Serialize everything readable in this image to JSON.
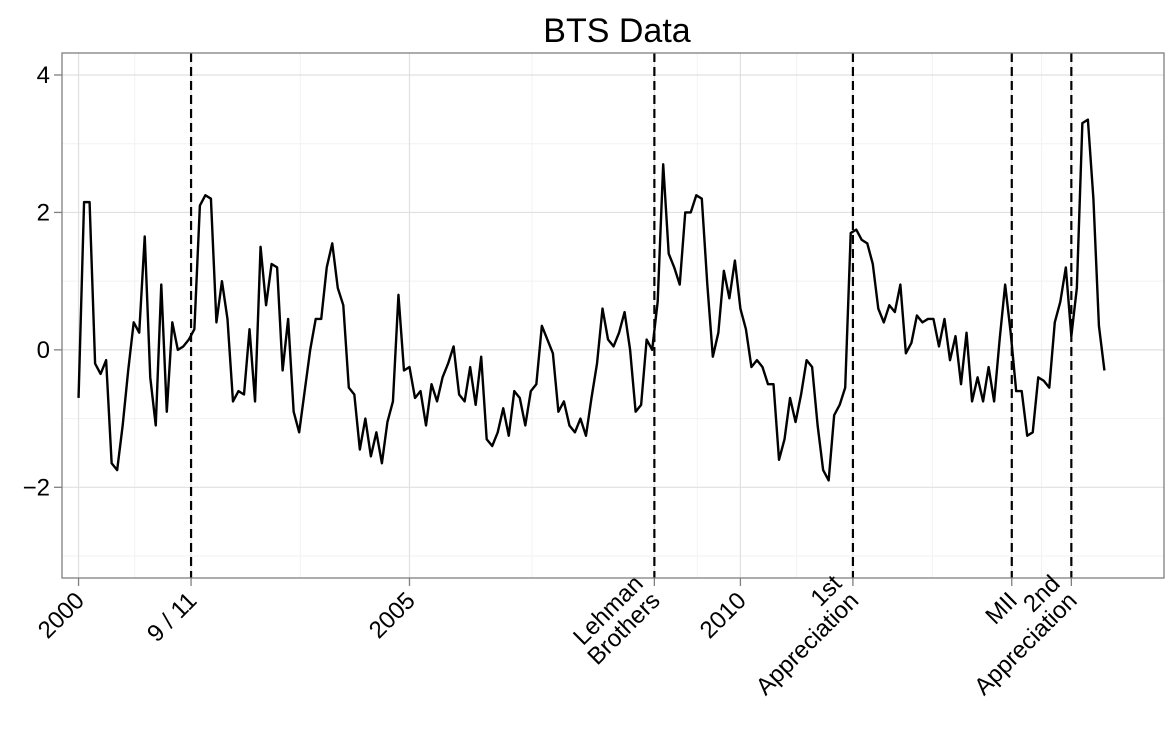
{
  "chart_data": {
    "type": "line",
    "title": "BTS Data",
    "xlabel": "",
    "ylabel": "",
    "x_start_year": 2000,
    "x_step_months": 0.5,
    "xlim": [
      1999.75,
      2016.4
    ],
    "ylim": [
      -3.32,
      4.32
    ],
    "y_ticks": [
      -2,
      0,
      2,
      4
    ],
    "y_tick_labels": [
      "−2",
      "0",
      "2",
      "4"
    ],
    "x_ticks": [
      {
        "x": 2000.0,
        "label": "2000"
      },
      {
        "x": 2001.7,
        "label": "9 / 11"
      },
      {
        "x": 2005.0,
        "label": "2005"
      },
      {
        "x": 2008.7,
        "label": "Lehman\nBrothers"
      },
      {
        "x": 2010.0,
        "label": "2010"
      },
      {
        "x": 2011.7,
        "label": "1st\nAppreciation"
      },
      {
        "x": 2014.1,
        "label": "MII"
      },
      {
        "x": 2015.0,
        "label": "2nd\nAppreciation"
      }
    ],
    "events": [
      {
        "x": 2001.7,
        "label": "9 / 11"
      },
      {
        "x": 2008.7,
        "label": "Lehman Brothers"
      },
      {
        "x": 2011.7,
        "label": "1st Appreciation"
      },
      {
        "x": 2014.1,
        "label": "MII"
      },
      {
        "x": 2015.0,
        "label": "2nd Appreciation"
      }
    ],
    "grid": true,
    "series": [
      {
        "values": [
          -0.7,
          2.15,
          2.15,
          -0.2,
          -0.35,
          -0.15,
          -1.65,
          -1.75,
          -1.1,
          -0.3,
          0.4,
          0.25,
          1.65,
          -0.4,
          -1.1,
          0.95,
          -0.9,
          0.4,
          0.0,
          0.05,
          0.15,
          0.3,
          2.1,
          2.25,
          2.2,
          0.4,
          1.0,
          0.45,
          -0.75,
          -0.6,
          -0.65,
          0.3,
          -0.75,
          1.5,
          0.65,
          1.25,
          1.2,
          -0.3,
          0.45,
          -0.9,
          -1.2,
          -0.6,
          0.0,
          0.45,
          0.45,
          1.2,
          1.55,
          0.9,
          0.65,
          -0.55,
          -0.65,
          -1.45,
          -1.0,
          -1.55,
          -1.2,
          -1.65,
          -1.05,
          -0.75,
          0.8,
          -0.3,
          -0.25,
          -0.7,
          -0.6,
          -1.1,
          -0.5,
          -0.75,
          -0.4,
          -0.2,
          0.05,
          -0.65,
          -0.75,
          -0.25,
          -0.8,
          -0.1,
          -1.3,
          -1.4,
          -1.2,
          -0.85,
          -1.25,
          -0.6,
          -0.7,
          -1.1,
          -0.6,
          -0.5,
          0.35,
          0.15,
          -0.05,
          -0.9,
          -0.75,
          -1.1,
          -1.2,
          -1.0,
          -1.25,
          -0.7,
          -0.2,
          0.6,
          0.15,
          0.05,
          0.25,
          0.55,
          0.0,
          -0.9,
          -0.8,
          0.15,
          0.0,
          0.7,
          2.7,
          1.4,
          1.2,
          0.95,
          2.0,
          2.0,
          2.25,
          2.2,
          0.95,
          -0.1,
          0.25,
          1.15,
          0.75,
          1.3,
          0.6,
          0.3,
          -0.25,
          -0.15,
          -0.25,
          -0.5,
          -0.5,
          -1.6,
          -1.3,
          -0.7,
          -1.05,
          -0.65,
          -0.15,
          -0.25,
          -1.1,
          -1.75,
          -1.9,
          -0.95,
          -0.8,
          -0.55,
          1.7,
          1.75,
          1.6,
          1.55,
          1.25,
          0.6,
          0.4,
          0.65,
          0.55,
          0.95,
          -0.05,
          0.1,
          0.5,
          0.4,
          0.45,
          0.45,
          0.05,
          0.45,
          -0.15,
          0.2,
          -0.5,
          0.25,
          -0.75,
          -0.4,
          -0.75,
          -0.25,
          -0.75,
          0.15,
          0.95,
          0.25,
          -0.6,
          -0.6,
          -1.25,
          -1.2,
          -0.4,
          -0.45,
          -0.55,
          0.4,
          0.7,
          1.2,
          0.2,
          0.9,
          3.3,
          3.35,
          2.2,
          0.35,
          -0.3
        ]
      }
    ]
  }
}
